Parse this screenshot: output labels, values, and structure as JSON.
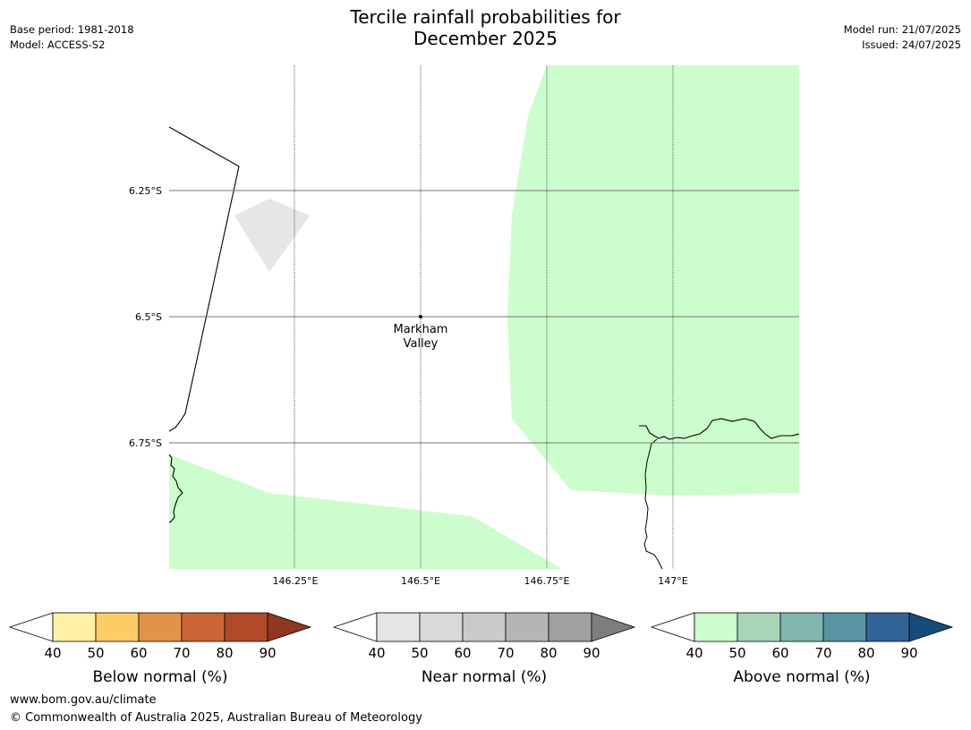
{
  "header": {
    "title_line1": "Tercile rainfall probabilities for",
    "title_line2": "December 2025",
    "base_period": "Base period: 1981-2018",
    "model": "Model: ACCESS-S2",
    "model_run": "Model run: 21/07/2025",
    "issued": "Issued: 24/07/2025"
  },
  "map": {
    "lat_labels": [
      "6.25°S",
      "6.5°S",
      "6.75°S"
    ],
    "lon_labels": [
      "146.25°E",
      "146.5°E",
      "146.75°E",
      "147°E"
    ],
    "place": {
      "name_line1": "Markham",
      "name_line2": "Valley"
    },
    "colors": {
      "above_light": "#ccfdcc",
      "near_light": "#e6e6e6",
      "coast": "#000000",
      "grid": "#666666"
    }
  },
  "colorbars": [
    {
      "label": "Below normal (%)",
      "ticks": [
        "40",
        "50",
        "60",
        "70",
        "80",
        "90"
      ],
      "colors": [
        "#fff0a3",
        "#fecc66",
        "#e19447",
        "#cd6435",
        "#b04a28",
        "#913620"
      ]
    },
    {
      "label": "Near normal (%)",
      "ticks": [
        "40",
        "50",
        "60",
        "70",
        "80",
        "90"
      ],
      "colors": [
        "#e5e5e5",
        "#d9d9d9",
        "#cacaca",
        "#b5b5b5",
        "#a0a0a0",
        "#7e7e7e"
      ]
    },
    {
      "label": "Above normal (%)",
      "ticks": [
        "40",
        "50",
        "60",
        "70",
        "80",
        "90"
      ],
      "colors": [
        "#ccfdcc",
        "#a7d5b5",
        "#80b6af",
        "#5a93a2",
        "#316597",
        "#174b7e"
      ]
    }
  ],
  "footer": {
    "url": "www.bom.gov.au/climate",
    "copyright": "© Commonwealth of Australia 2025, Australian Bureau of Meteorology"
  }
}
